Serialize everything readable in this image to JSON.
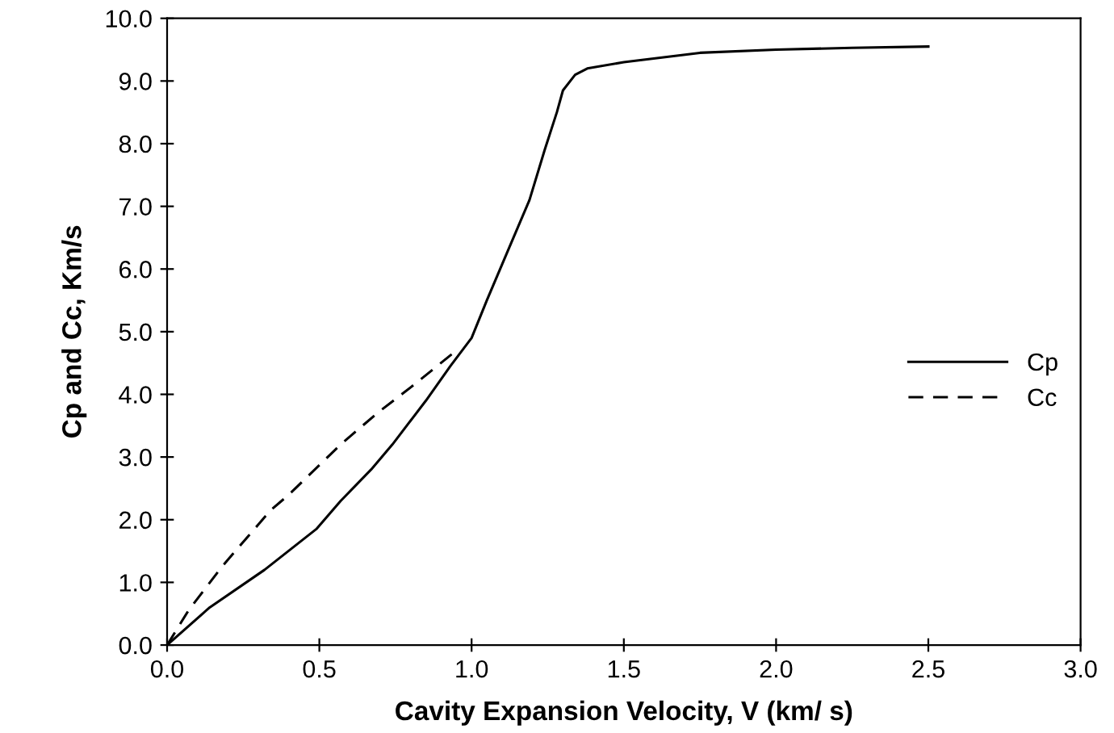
{
  "chart_data": {
    "type": "line",
    "xlabel": "Cavity Expansion Velocity, V (km/ s)",
    "ylabel": "Cp and Cc, Km/s",
    "xlim": [
      0.0,
      3.0
    ],
    "xticks": [
      {
        "value": 0,
        "label": "0.0"
      },
      {
        "value": 0.5,
        "label": "0.5"
      },
      {
        "value": 1,
        "label": "1.0"
      },
      {
        "value": 1.5,
        "label": "1.5"
      },
      {
        "value": 2,
        "label": "2.0"
      },
      {
        "value": 2.5,
        "label": "2.5"
      },
      {
        "value": 3,
        "label": "3.0"
      }
    ],
    "ylim": [
      0.0,
      10.0
    ],
    "yticks": [
      {
        "value": 0,
        "label": "0.0"
      },
      {
        "value": 1,
        "label": "1.0"
      },
      {
        "value": 2,
        "label": "2.0"
      },
      {
        "value": 3,
        "label": "3.0"
      },
      {
        "value": 4,
        "label": "4.0"
      },
      {
        "value": 5,
        "label": "5.0"
      },
      {
        "value": 6,
        "label": "6.0"
      },
      {
        "value": 7,
        "label": "7.0"
      },
      {
        "value": 8,
        "label": "8.0"
      },
      {
        "value": 9,
        "label": "9.0"
      },
      {
        "value": 10,
        "label": "10.0"
      }
    ],
    "grid": false,
    "legend": "right",
    "marker": "none",
    "series": [
      {
        "name": "Cp",
        "color": "#000000",
        "line_style": "solid",
        "x": [
          0,
          0.14,
          0.32,
          0.49,
          0.57,
          0.67,
          0.74,
          0.85,
          0.93,
          1.0,
          1.05,
          1.12,
          1.19,
          1.24,
          1.28,
          1.3,
          1.34,
          1.38,
          1.5,
          1.75,
          2.0,
          2.25,
          2.5
        ],
        "values": [
          0,
          0.6,
          1.2,
          1.85,
          2.3,
          2.8,
          3.2,
          3.9,
          4.45,
          4.9,
          5.5,
          6.3,
          7.1,
          7.9,
          8.5,
          8.85,
          9.1,
          9.2,
          9.3,
          9.45,
          9.5,
          9.53,
          9.55
        ]
      },
      {
        "name": "Cc",
        "color": "#000000",
        "line_style": "dashed",
        "x": [
          0,
          0.07,
          0.18,
          0.34,
          0.4,
          0.57,
          0.69,
          0.81,
          0.95
        ],
        "values": [
          0,
          0.55,
          1.25,
          2.15,
          2.4,
          3.2,
          3.7,
          4.15,
          4.7
        ]
      }
    ]
  }
}
